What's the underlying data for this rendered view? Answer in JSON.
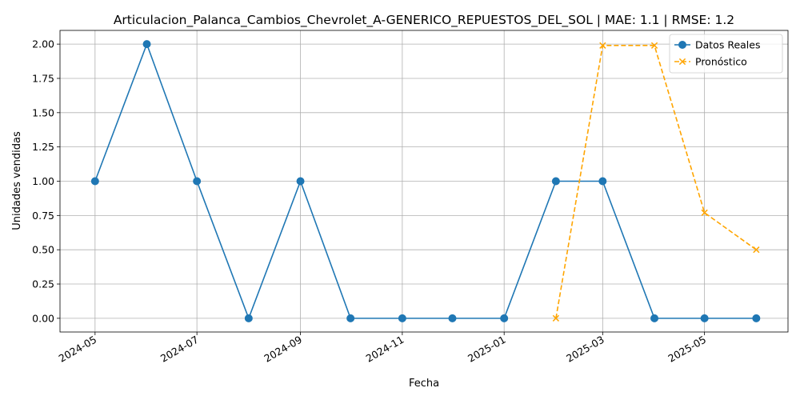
{
  "chart_data": {
    "type": "line",
    "title": "Articulacion_Palanca_Cambios_Chevrolet_A-GENERICO_REPUESTOS_DEL_SOL | MAE: 1.1 | RMSE: 1.2",
    "xlabel": "Fecha",
    "ylabel": "Unidades vendidas",
    "xlim": [
      "2024-04-10",
      "2025-06-20"
    ],
    "ylim": [
      -0.1,
      2.1
    ],
    "x_ticks": [
      "2024-05-01",
      "2024-07-01",
      "2024-09-01",
      "2024-11-01",
      "2025-01-01",
      "2025-03-01",
      "2025-05-01"
    ],
    "x_tick_labels": [
      "2024-05",
      "2024-07",
      "2024-09",
      "2024-11",
      "2025-01",
      "2025-03",
      "2025-05"
    ],
    "y_ticks": [
      0,
      0.25,
      0.5,
      0.75,
      1.0,
      1.25,
      1.5,
      1.75,
      2.0
    ],
    "y_tick_labels": [
      "0.00",
      "0.25",
      "0.50",
      "0.75",
      "1.00",
      "1.25",
      "1.50",
      "1.75",
      "2.00"
    ],
    "grid": true,
    "legend_position": "top-right",
    "series": [
      {
        "name": "Datos Reales",
        "color": "#1f77b4",
        "line_style": "solid",
        "marker": "circle",
        "x": [
          "2024-05-01",
          "2024-06-01",
          "2024-07-01",
          "2024-08-01",
          "2024-09-01",
          "2024-10-01",
          "2024-11-01",
          "2024-12-01",
          "2025-01-01",
          "2025-02-01",
          "2025-03-01",
          "2025-04-01",
          "2025-05-01",
          "2025-06-01"
        ],
        "values": [
          1,
          2,
          1,
          0,
          1,
          0,
          0,
          0,
          0,
          1,
          1,
          0,
          0,
          0
        ]
      },
      {
        "name": "Pronóstico",
        "color": "#ffa500",
        "line_style": "dashed",
        "marker": "x",
        "x": [
          "2025-02-01",
          "2025-03-01",
          "2025-04-01",
          "2025-05-01",
          "2025-06-01"
        ],
        "values": [
          0.0,
          1.99,
          1.99,
          0.77,
          0.5
        ]
      }
    ]
  }
}
